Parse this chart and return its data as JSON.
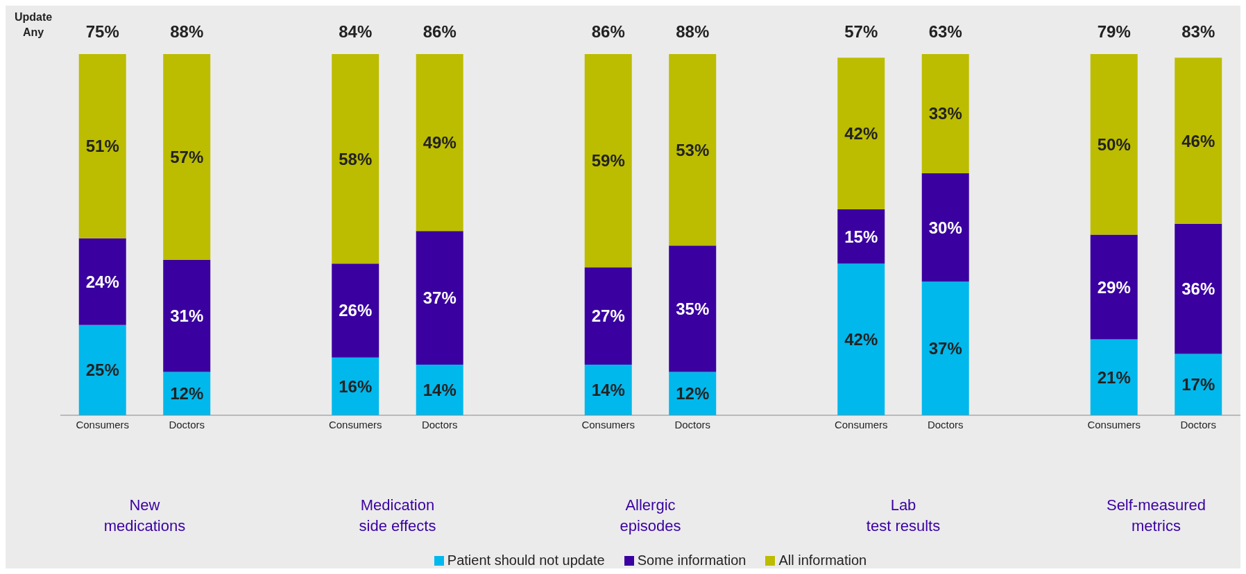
{
  "chart_data": {
    "type": "bar",
    "stacked": true,
    "categories": [
      "Consumers",
      "Doctors",
      null,
      "Consumers",
      "Doctors",
      null,
      "Consumers",
      "Doctors",
      null,
      "Consumers",
      "Doctors",
      null,
      "Consumers",
      "Doctors"
    ],
    "series": [
      {
        "name": "Patient should not update",
        "color": "#00b8ec",
        "values": [
          25,
          12,
          null,
          16,
          14,
          null,
          14,
          12,
          null,
          42,
          37,
          null,
          21,
          17
        ],
        "value_labels": [
          "25%",
          "12%",
          null,
          "16%",
          "14%",
          null,
          "14%",
          "12%",
          null,
          "42%",
          "37%",
          null,
          "21%",
          "17%"
        ]
      },
      {
        "name": "Some information",
        "color": "#3a00a0",
        "values": [
          24,
          31,
          null,
          26,
          37,
          null,
          27,
          35,
          null,
          15,
          30,
          null,
          29,
          36
        ],
        "value_labels": [
          "24%",
          "31%",
          null,
          "26%",
          "37%",
          null,
          "27%",
          "35%",
          null,
          "15%",
          "30%",
          null,
          "29%",
          "36%"
        ]
      },
      {
        "name": "All information",
        "color": "#bcbc00",
        "values": [
          51,
          57,
          null,
          58,
          49,
          null,
          59,
          53,
          null,
          42,
          33,
          null,
          50,
          46
        ],
        "value_labels": [
          "51%",
          "57%",
          null,
          "58%",
          "49%",
          null,
          "59%",
          "53%",
          null,
          "42%",
          "33%",
          null,
          "50%",
          "46%"
        ]
      }
    ],
    "annotations": [
      "Update\nAny",
      "75%",
      "88%",
      "84%",
      "86%",
      "86%",
      "88%",
      "57%",
      "63%",
      "79%",
      "83%",
      "New\nmedications",
      "Medication\nside effects",
      "Allergic\nepisodes",
      "Lab\ntest results",
      "Self-measured\nmetrics"
    ],
    "ylim": [
      0,
      100
    ],
    "tick_labels": "x",
    "legend": "bottom"
  }
}
